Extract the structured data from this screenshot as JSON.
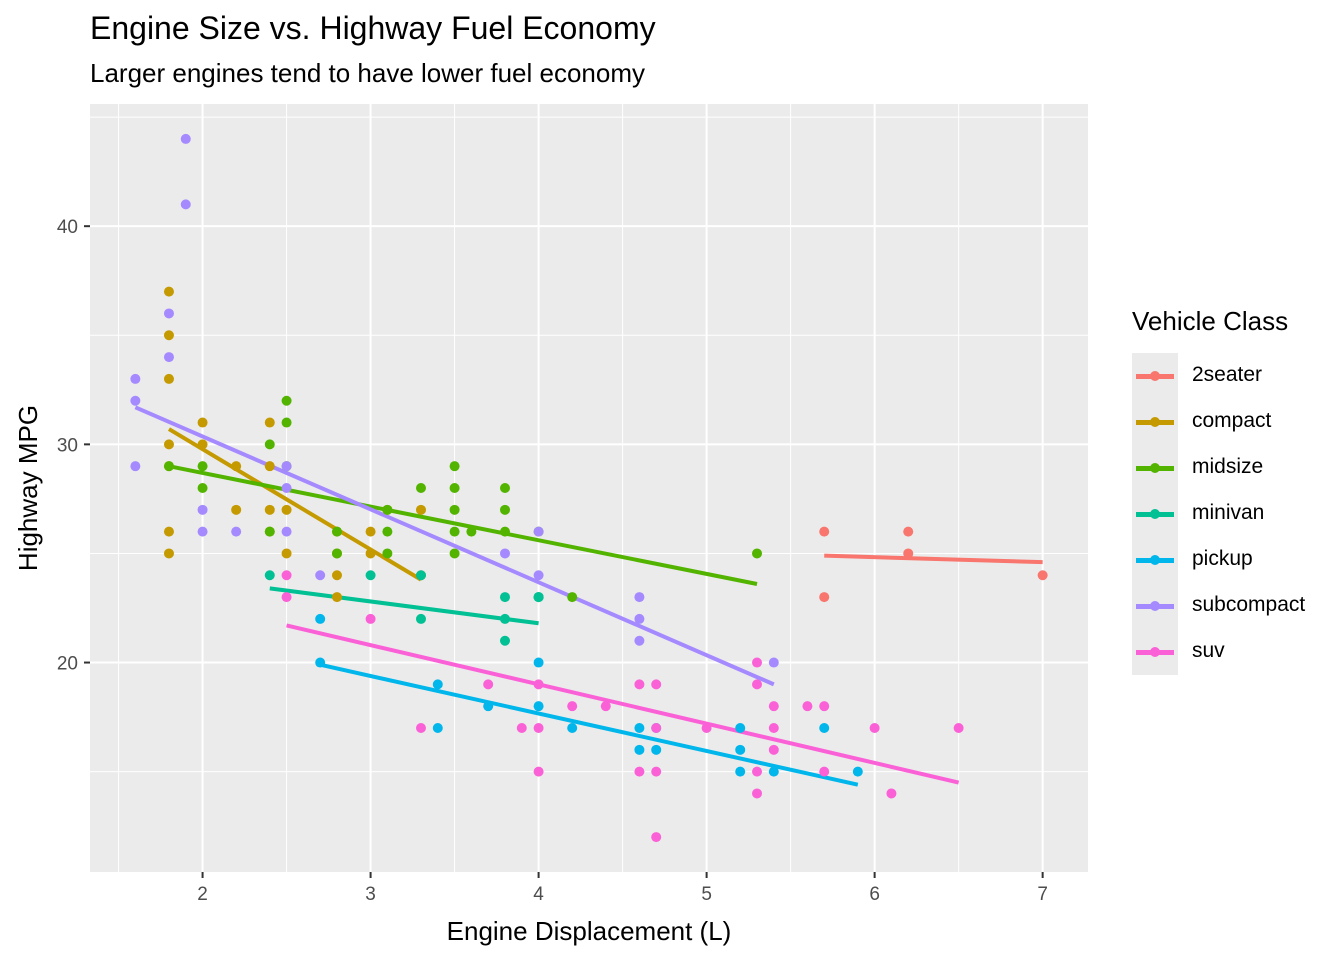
{
  "chart_data": {
    "type": "scatter",
    "title": "Engine Size vs. Highway Fuel Economy",
    "subtitle": "Larger engines tend to have lower fuel economy",
    "xlabel": "Engine Displacement (L)",
    "ylabel": "Highway MPG",
    "xlim": [
      1.33,
      7.27
    ],
    "ylim": [
      10.4,
      45.6
    ],
    "x_ticks": [
      2,
      3,
      4,
      5,
      6,
      7
    ],
    "y_ticks": [
      20,
      30,
      40
    ],
    "grid": true,
    "legend": {
      "title": "Vehicle Class",
      "position": "right"
    },
    "series": [
      {
        "name": "2seater",
        "color": "#F8766D",
        "points": [
          [
            5.7,
            26
          ],
          [
            5.7,
            23
          ],
          [
            6.2,
            26
          ],
          [
            6.2,
            25
          ],
          [
            7.0,
            24
          ]
        ],
        "fit": [
          [
            5.7,
            24.9
          ],
          [
            7.0,
            24.6
          ]
        ]
      },
      {
        "name": "compact",
        "color": "#C49A00",
        "points": [
          [
            1.8,
            37
          ],
          [
            1.8,
            35
          ],
          [
            1.8,
            33
          ],
          [
            1.8,
            30
          ],
          [
            1.8,
            29
          ],
          [
            1.8,
            26
          ],
          [
            1.8,
            25
          ],
          [
            2.0,
            31
          ],
          [
            2.0,
            30
          ],
          [
            2.2,
            29
          ],
          [
            2.2,
            27
          ],
          [
            2.4,
            31
          ],
          [
            2.4,
            29
          ],
          [
            2.4,
            27
          ],
          [
            2.4,
            26
          ],
          [
            2.5,
            25
          ],
          [
            2.5,
            27
          ],
          [
            2.8,
            26
          ],
          [
            2.8,
            25
          ],
          [
            2.8,
            24
          ],
          [
            2.8,
            23
          ],
          [
            3.0,
            26
          ],
          [
            3.0,
            25
          ],
          [
            3.1,
            27
          ],
          [
            3.3,
            27
          ],
          [
            3.3,
            24
          ]
        ],
        "fit": [
          [
            1.8,
            30.7
          ],
          [
            3.3,
            23.8
          ]
        ]
      },
      {
        "name": "midsize",
        "color": "#53B400",
        "points": [
          [
            1.8,
            29
          ],
          [
            2.0,
            29
          ],
          [
            2.0,
            28
          ],
          [
            2.4,
            30
          ],
          [
            2.4,
            26
          ],
          [
            2.5,
            32
          ],
          [
            2.5,
            31
          ],
          [
            2.5,
            29
          ],
          [
            2.8,
            26
          ],
          [
            2.8,
            25
          ],
          [
            3.1,
            27
          ],
          [
            3.1,
            26
          ],
          [
            3.1,
            25
          ],
          [
            3.3,
            28
          ],
          [
            3.5,
            29
          ],
          [
            3.5,
            28
          ],
          [
            3.5,
            27
          ],
          [
            3.5,
            26
          ],
          [
            3.5,
            25
          ],
          [
            3.6,
            26
          ],
          [
            3.8,
            28
          ],
          [
            3.8,
            27
          ],
          [
            3.8,
            26
          ],
          [
            4.0,
            26
          ],
          [
            4.2,
            23
          ],
          [
            5.3,
            25
          ]
        ],
        "fit": [
          [
            1.8,
            29.0
          ],
          [
            5.3,
            23.6
          ]
        ]
      },
      {
        "name": "minivan",
        "color": "#00C094",
        "points": [
          [
            2.4,
            24
          ],
          [
            3.0,
            24
          ],
          [
            3.3,
            24
          ],
          [
            3.3,
            22
          ],
          [
            3.8,
            23
          ],
          [
            3.8,
            22
          ],
          [
            3.8,
            21
          ],
          [
            4.0,
            23
          ],
          [
            4.0,
            23
          ],
          [
            4.0,
            23
          ]
        ],
        "fit": [
          [
            2.4,
            23.4
          ],
          [
            4.0,
            21.8
          ]
        ]
      },
      {
        "name": "pickup",
        "color": "#00B6EB",
        "points": [
          [
            2.7,
            22
          ],
          [
            2.7,
            20
          ],
          [
            3.4,
            19
          ],
          [
            3.4,
            17
          ],
          [
            3.7,
            18
          ],
          [
            4.0,
            20
          ],
          [
            4.0,
            18
          ],
          [
            4.2,
            17
          ],
          [
            4.6,
            17
          ],
          [
            4.6,
            16
          ],
          [
            4.7,
            17
          ],
          [
            4.7,
            16
          ],
          [
            5.2,
            17
          ],
          [
            5.2,
            16
          ],
          [
            5.2,
            15
          ],
          [
            5.4,
            15
          ],
          [
            5.7,
            17
          ],
          [
            5.9,
            15
          ]
        ],
        "fit": [
          [
            2.7,
            19.9
          ],
          [
            5.9,
            14.4
          ]
        ]
      },
      {
        "name": "subcompact",
        "color": "#A58AFF",
        "points": [
          [
            1.6,
            33
          ],
          [
            1.6,
            32
          ],
          [
            1.6,
            29
          ],
          [
            1.8,
            36
          ],
          [
            1.8,
            34
          ],
          [
            1.9,
            44
          ],
          [
            1.9,
            41
          ],
          [
            2.0,
            27
          ],
          [
            2.0,
            26
          ],
          [
            2.2,
            26
          ],
          [
            2.5,
            29
          ],
          [
            2.5,
            28
          ],
          [
            2.5,
            26
          ],
          [
            2.7,
            24
          ],
          [
            3.8,
            25
          ],
          [
            4.0,
            26
          ],
          [
            4.0,
            24
          ],
          [
            4.6,
            23
          ],
          [
            4.6,
            22
          ],
          [
            4.6,
            21
          ],
          [
            5.4,
            20
          ]
        ],
        "fit": [
          [
            1.6,
            31.7
          ],
          [
            5.4,
            19.0
          ]
        ]
      },
      {
        "name": "suv",
        "color": "#FB61D7",
        "points": [
          [
            2.5,
            24
          ],
          [
            2.5,
            23
          ],
          [
            3.0,
            22
          ],
          [
            3.3,
            17
          ],
          [
            3.7,
            19
          ],
          [
            3.9,
            17
          ],
          [
            4.0,
            19
          ],
          [
            4.0,
            17
          ],
          [
            4.0,
            15
          ],
          [
            4.2,
            18
          ],
          [
            4.4,
            18
          ],
          [
            4.6,
            19
          ],
          [
            4.6,
            15
          ],
          [
            4.7,
            19
          ],
          [
            4.7,
            17
          ],
          [
            4.7,
            15
          ],
          [
            4.7,
            12
          ],
          [
            5.0,
            17
          ],
          [
            5.3,
            20
          ],
          [
            5.3,
            19
          ],
          [
            5.3,
            15
          ],
          [
            5.3,
            14
          ],
          [
            5.4,
            18
          ],
          [
            5.4,
            17
          ],
          [
            5.4,
            16
          ],
          [
            5.6,
            18
          ],
          [
            5.7,
            18
          ],
          [
            5.7,
            15
          ],
          [
            6.0,
            17
          ],
          [
            6.1,
            14
          ],
          [
            6.5,
            17
          ]
        ],
        "fit": [
          [
            2.5,
            21.7
          ],
          [
            6.5,
            14.5
          ]
        ]
      }
    ]
  }
}
